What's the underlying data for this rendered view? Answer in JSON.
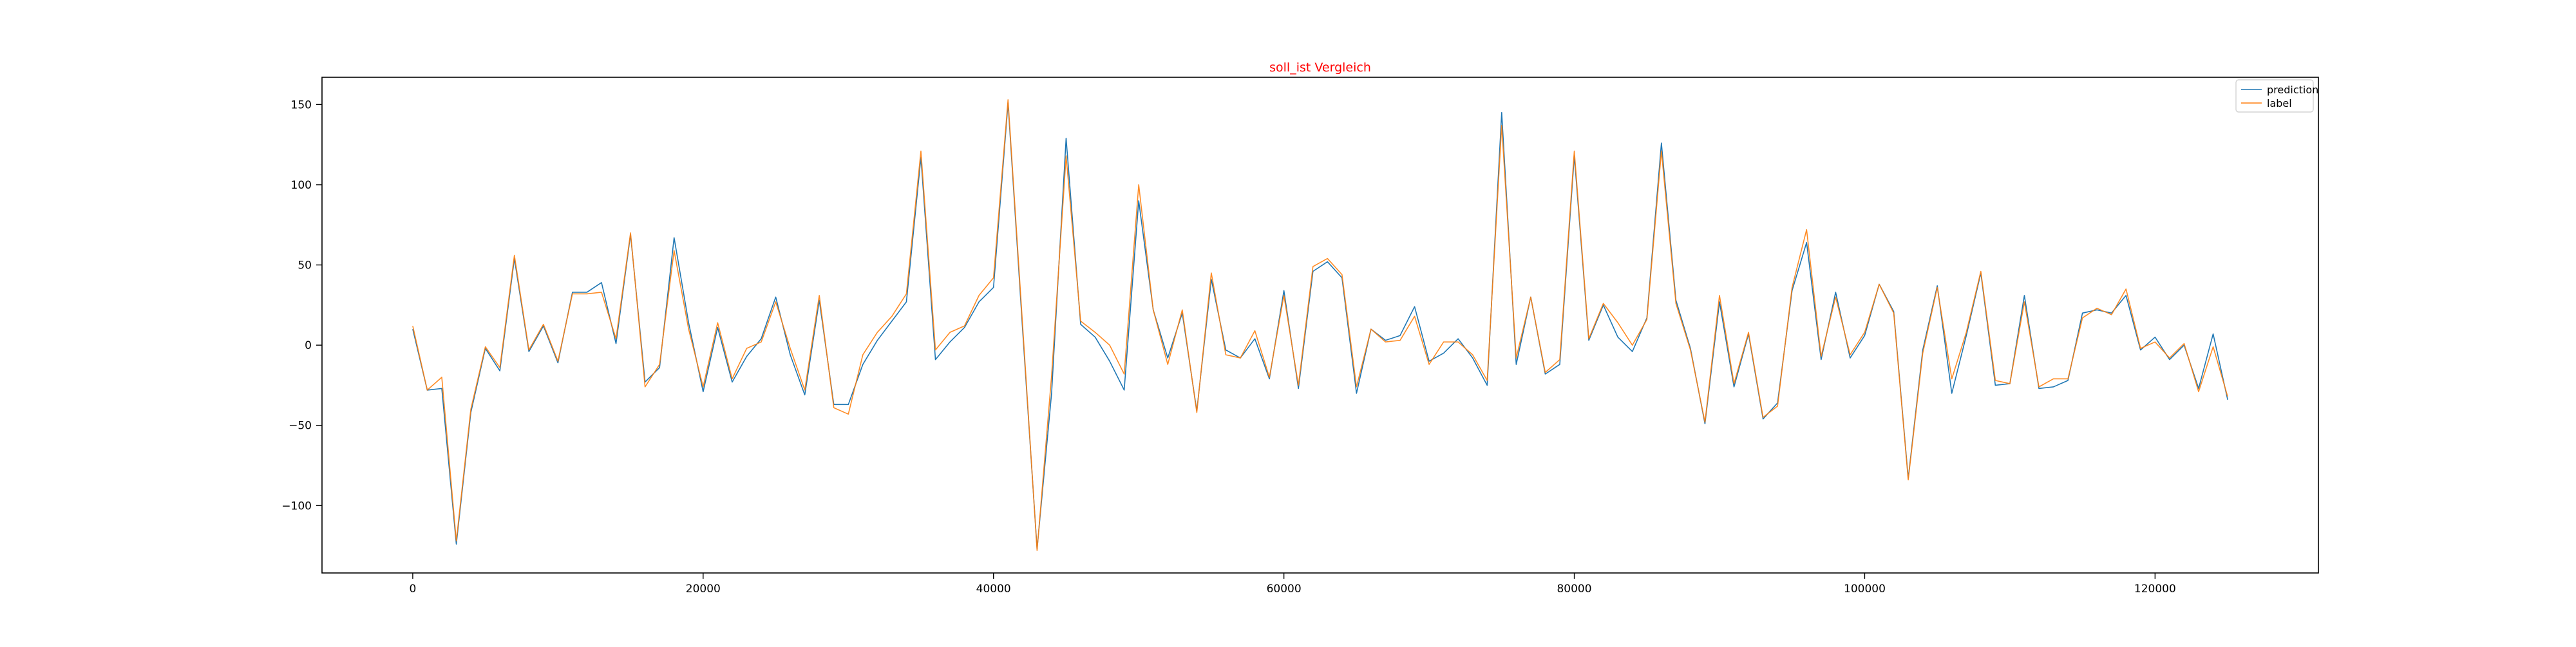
{
  "colors": {
    "prediction": "#1f77b4",
    "label": "#ff7f0e",
    "title": "#ff0000",
    "axes": "#000000",
    "background": "#ffffff"
  },
  "chart_data": {
    "type": "line",
    "title": "soll_ist Vergleich",
    "xlabel": "",
    "ylabel": "",
    "xlim": [
      -6250,
      131250
    ],
    "ylim": [
      -142,
      167
    ],
    "xticks": [
      0,
      20000,
      40000,
      60000,
      80000,
      100000,
      120000
    ],
    "yticks": [
      -100,
      -50,
      0,
      50,
      100,
      150
    ],
    "grid": false,
    "legend_position": "upper right",
    "x": [
      0,
      1000,
      2000,
      3000,
      4000,
      5000,
      6000,
      7000,
      8000,
      9000,
      10000,
      11000,
      12000,
      13000,
      14000,
      15000,
      16000,
      17000,
      18000,
      19000,
      20000,
      21000,
      22000,
      23000,
      24000,
      25000,
      26000,
      27000,
      28000,
      29000,
      30000,
      31000,
      32000,
      33000,
      34000,
      35000,
      36000,
      37000,
      38000,
      39000,
      40000,
      41000,
      42000,
      43000,
      44000,
      45000,
      46000,
      47000,
      48000,
      49000,
      50000,
      51000,
      52000,
      53000,
      54000,
      55000,
      56000,
      57000,
      58000,
      59000,
      60000,
      61000,
      62000,
      63000,
      64000,
      65000,
      66000,
      67000,
      68000,
      69000,
      70000,
      71000,
      72000,
      73000,
      74000,
      75000,
      76000,
      77000,
      78000,
      79000,
      80000,
      81000,
      82000,
      83000,
      84000,
      85000,
      86000,
      87000,
      88000,
      89000,
      90000,
      91000,
      92000,
      93000,
      94000,
      95000,
      96000,
      97000,
      98000,
      99000,
      100000,
      101000,
      102000,
      103000,
      104000,
      105000,
      106000,
      107000,
      108000,
      109000,
      110000,
      111000,
      112000,
      113000,
      114000,
      115000,
      116000,
      117000,
      118000,
      119000,
      120000,
      121000,
      122000,
      123000,
      124000,
      125000
    ],
    "series": [
      {
        "name": "prediction",
        "values": [
          10,
          -28,
          -27,
          -124,
          -42,
          -2,
          -16,
          54,
          -4,
          12,
          -11,
          33,
          33,
          39,
          1,
          69,
          -23,
          -14,
          67,
          14,
          -29,
          11,
          -23,
          -7,
          4,
          30,
          -6,
          -31,
          28,
          -37,
          -37,
          -12,
          3,
          15,
          27,
          117,
          -9,
          2,
          11,
          27,
          36,
          151,
          10,
          -127,
          -30,
          129,
          13,
          5,
          -10,
          -28,
          90,
          22,
          -8,
          20,
          -41,
          41,
          -3,
          -8,
          4,
          -21,
          34,
          -27,
          46,
          52,
          42,
          -30,
          10,
          3,
          6,
          24,
          -10,
          -5,
          4,
          -8,
          -25,
          145,
          -12,
          30,
          -18,
          -12,
          118,
          3,
          25,
          5,
          -4,
          17,
          126,
          28,
          -2,
          -49,
          27,
          -26,
          7,
          -46,
          -36,
          34,
          64,
          -9,
          33,
          -8,
          6,
          38,
          21,
          -83,
          -3,
          37,
          -30,
          6,
          45,
          -25,
          -24,
          31,
          -27,
          -26,
          -22,
          20,
          22,
          20,
          31,
          -3,
          5,
          -9,
          0,
          -27,
          7,
          -34
        ]
      },
      {
        "name": "label",
        "values": [
          12,
          -28,
          -20,
          -122,
          -40,
          -1,
          -14,
          56,
          -3,
          13,
          -10,
          32,
          32,
          33,
          4,
          70,
          -26,
          -12,
          59,
          10,
          -26,
          14,
          -21,
          -2,
          2,
          27,
          -2,
          -28,
          31,
          -39,
          -43,
          -6,
          8,
          18,
          32,
          121,
          -3,
          8,
          12,
          31,
          42,
          153,
          13,
          -128,
          -19,
          118,
          15,
          8,
          0,
          -18,
          100,
          22,
          -12,
          22,
          -42,
          45,
          -6,
          -8,
          9,
          -20,
          31,
          -25,
          49,
          54,
          44,
          -26,
          10,
          2,
          3,
          18,
          -12,
          2,
          2,
          -6,
          -22,
          137,
          -8,
          30,
          -17,
          -9,
          121,
          4,
          26,
          14,
          0,
          16,
          121,
          26,
          -3,
          -48,
          31,
          -24,
          8,
          -45,
          -38,
          36,
          72,
          -7,
          30,
          -6,
          8,
          38,
          20,
          -84,
          -5,
          36,
          -21,
          8,
          46,
          -22,
          -24,
          27,
          -26,
          -21,
          -21,
          17,
          23,
          19,
          35,
          -2,
          2,
          -8,
          1,
          -29,
          -1,
          -32
        ]
      }
    ]
  }
}
